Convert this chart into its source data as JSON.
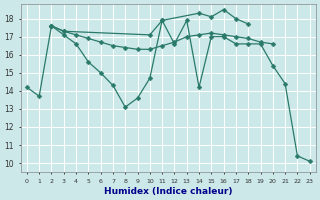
{
  "xlabel": "Humidex (Indice chaleur)",
  "bg_color": "#cce8e8",
  "grid_color": "#ffffff",
  "line_color": "#2a7a6a",
  "xlim": [
    -0.5,
    23.5
  ],
  "ylim": [
    9.5,
    18.8
  ],
  "xticks": [
    0,
    1,
    2,
    3,
    4,
    5,
    6,
    7,
    8,
    9,
    10,
    11,
    12,
    13,
    14,
    15,
    16,
    17,
    18,
    19,
    20,
    21,
    22,
    23
  ],
  "yticks": [
    10,
    11,
    12,
    13,
    14,
    15,
    16,
    17,
    18
  ],
  "series1_x": [
    0,
    1,
    2,
    3,
    4,
    5,
    6,
    7,
    8,
    9,
    10,
    11,
    12,
    13,
    14,
    15,
    16,
    17,
    18,
    19,
    20,
    21,
    22,
    23
  ],
  "series1_y": [
    14.2,
    13.7,
    17.6,
    17.1,
    16.6,
    15.6,
    15.0,
    14.3,
    13.1,
    13.6,
    14.7,
    17.9,
    16.6,
    17.9,
    14.2,
    17.0,
    17.0,
    16.6,
    16.6,
    16.6,
    15.4,
    14.4,
    10.4,
    10.1
  ],
  "series2_x": [
    2,
    3,
    4,
    5,
    6,
    7,
    8,
    9,
    10,
    11,
    12,
    13,
    14,
    15,
    16,
    17,
    18,
    19,
    20
  ],
  "series2_y": [
    17.6,
    17.3,
    17.1,
    16.9,
    16.7,
    16.5,
    16.4,
    16.3,
    16.3,
    16.5,
    16.7,
    17.0,
    17.1,
    17.2,
    17.1,
    17.0,
    16.9,
    16.7,
    16.6
  ],
  "series3_x": [
    2,
    3,
    10,
    11,
    14,
    15,
    16,
    17,
    18
  ],
  "series3_y": [
    17.6,
    17.3,
    17.1,
    17.9,
    18.3,
    18.1,
    18.5,
    18.0,
    17.7
  ],
  "xlabel_color": "#00008b",
  "tick_color": "#333333",
  "spine_color": "#888888"
}
